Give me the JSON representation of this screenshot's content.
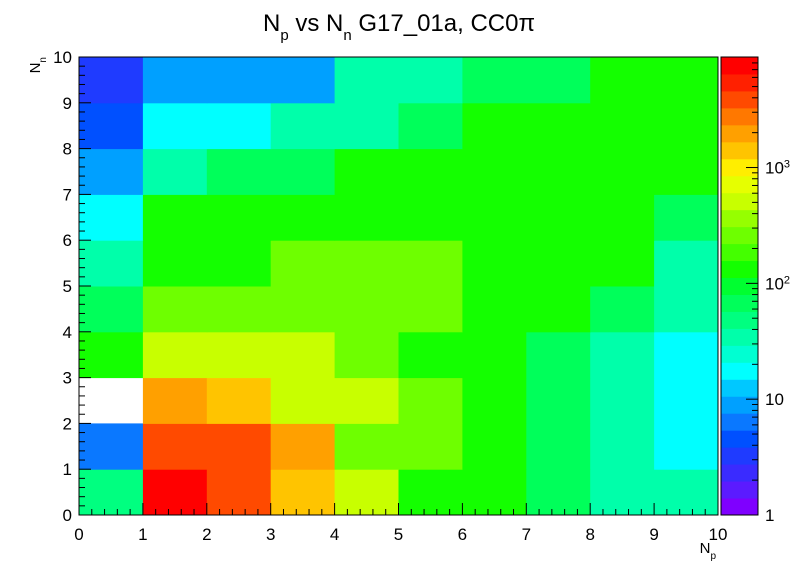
{
  "chart_data": {
    "type": "heatmap",
    "title": {
      "parts": [
        {
          "t": "N"
        },
        {
          "t": "p",
          "sub": true
        },
        {
          "t": " vs N"
        },
        {
          "t": "n",
          "sub": true
        },
        {
          "t": " G17_01a, CC0π"
        }
      ]
    },
    "xlabel": {
      "main": "N",
      "sub": "p"
    },
    "ylabel": {
      "main": "N",
      "sub": "n"
    },
    "x_edges": [
      0,
      1,
      2,
      3,
      4,
      5,
      6,
      7,
      8,
      9,
      10
    ],
    "y_edges": [
      0,
      1,
      2,
      3,
      4,
      5,
      6,
      7,
      8,
      9,
      10
    ],
    "x_ticks": [
      "0",
      "1",
      "2",
      "3",
      "4",
      "5",
      "6",
      "7",
      "8",
      "9",
      "10"
    ],
    "y_ticks": [
      "0",
      "1",
      "2",
      "3",
      "4",
      "5",
      "6",
      "7",
      "8",
      "9",
      "10"
    ],
    "zscale": "log",
    "zlim": [
      1,
      9000
    ],
    "colorbar_ticks": [
      {
        "value": 1,
        "label": "1"
      },
      {
        "value": 10,
        "label": "10"
      },
      {
        "value": 100,
        "label": "10",
        "exp": "2"
      },
      {
        "value": 1000,
        "label": "10",
        "exp": "3"
      }
    ],
    "palette": [
      "#7f00ff",
      "#5b1bff",
      "#3a2bff",
      "#1f3bff",
      "#0050ff",
      "#0a78ff",
      "#00a0ff",
      "#00c8ff",
      "#00ffff",
      "#00ffd2",
      "#00ffaa",
      "#00ff80",
      "#00ff5a",
      "#00ff30",
      "#14ff00",
      "#44ff00",
      "#6eff00",
      "#96ff00",
      "#c8ff00",
      "#e6ff00",
      "#ffee00",
      "#ffc400",
      "#ffa000",
      "#ff7800",
      "#ff4a00",
      "#ff2000",
      "#ff0000"
    ],
    "rows_from_y0": [
      [
        50,
        9000,
        4500,
        1500,
        500,
        150,
        120,
        60,
        30,
        30
      ],
      [
        7,
        4500,
        4500,
        1700,
        300,
        250,
        150,
        60,
        40,
        20
      ],
      [
        null,
        1700,
        1300,
        600,
        600,
        300,
        150,
        60,
        40,
        20
      ],
      [
        120,
        600,
        600,
        600,
        300,
        150,
        120,
        60,
        40,
        20
      ],
      [
        60,
        300,
        300,
        300,
        300,
        300,
        150,
        150,
        60,
        40
      ],
      [
        30,
        150,
        150,
        300,
        300,
        300,
        150,
        150,
        120,
        40
      ],
      [
        20,
        120,
        120,
        150,
        150,
        150,
        150,
        150,
        120,
        60
      ],
      [
        10,
        40,
        60,
        60,
        120,
        120,
        150,
        150,
        120,
        120
      ],
      [
        5,
        20,
        20,
        40,
        40,
        60,
        120,
        120,
        120,
        120
      ],
      [
        3,
        10,
        10,
        10,
        30,
        30,
        60,
        60,
        120,
        120
      ]
    ]
  }
}
